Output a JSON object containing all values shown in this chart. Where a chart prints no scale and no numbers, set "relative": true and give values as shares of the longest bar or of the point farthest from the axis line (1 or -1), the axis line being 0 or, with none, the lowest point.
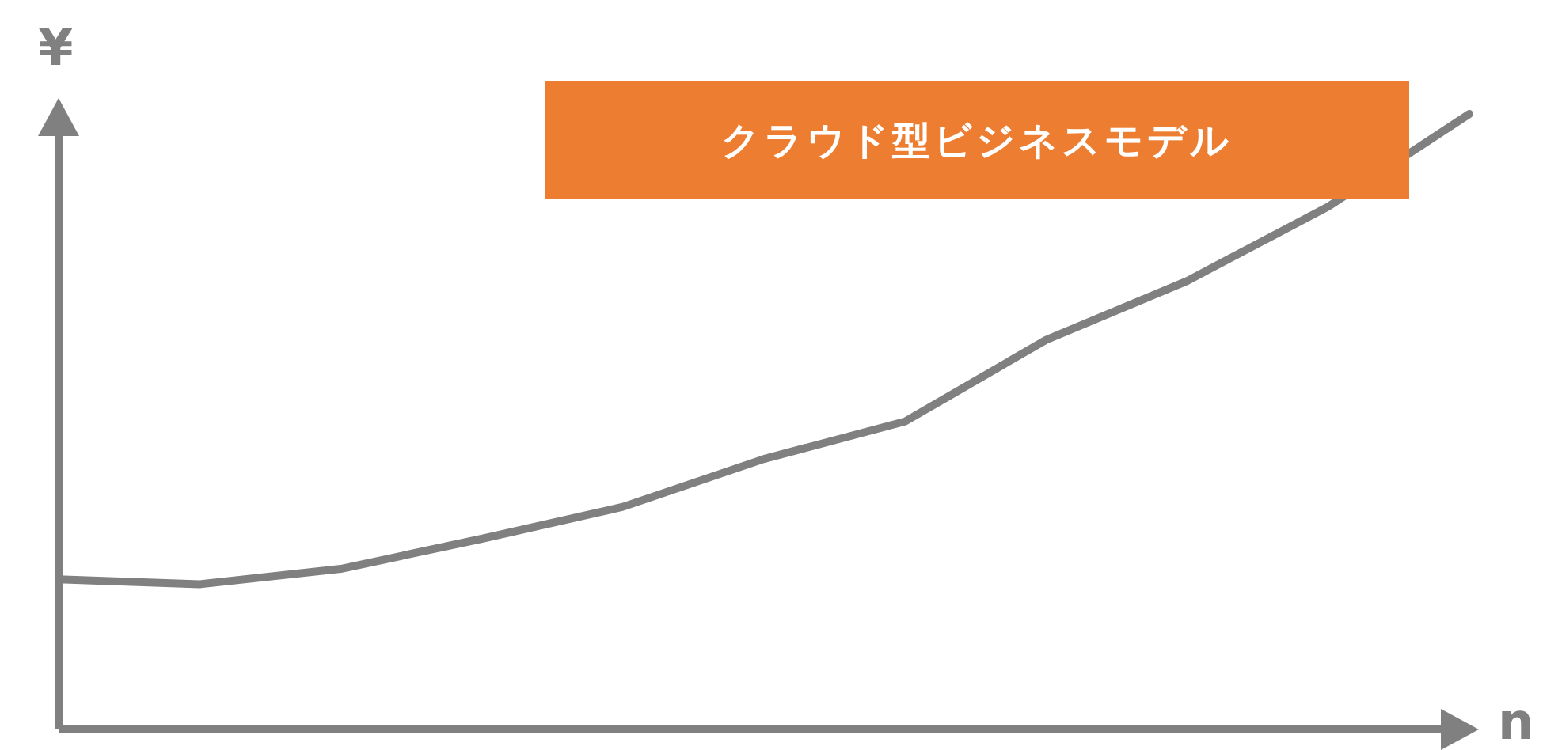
{
  "chart_data": {
    "type": "line",
    "relative": true,
    "xlabel": "n",
    "ylabel": "¥",
    "annotations": [
      "クラウド型ビジネスモデル"
    ],
    "color": "#808080",
    "categories": [
      null,
      null,
      null,
      null,
      null,
      null,
      null,
      null,
      null,
      null,
      null
    ],
    "values": [
      0.242,
      0.234,
      0.259,
      0.308,
      0.36,
      0.438,
      0.499,
      0.632,
      0.728,
      0.849,
      1
    ]
  }
}
